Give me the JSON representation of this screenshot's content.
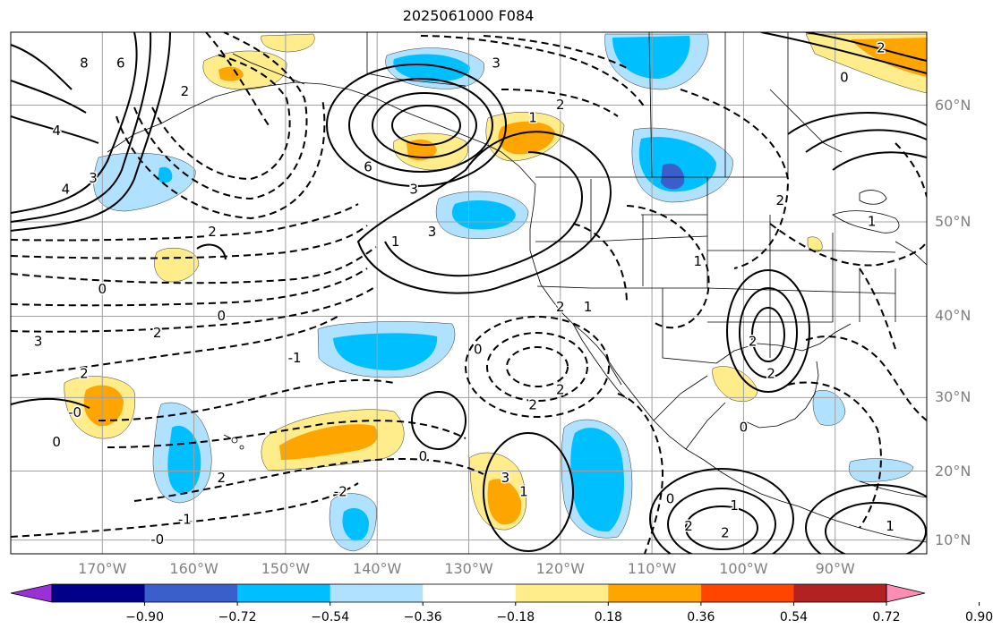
{
  "title": "2025061000 F084",
  "lat_labels": [
    {
      "text": "60°N",
      "lat": 60
    },
    {
      "text": "50°N",
      "lat": 50
    },
    {
      "text": "40°N",
      "lat": 40
    },
    {
      "text": "30°N",
      "lat": 30
    },
    {
      "text": "20°N",
      "lat": 20
    },
    {
      "text": "10°N",
      "lat": 10
    }
  ],
  "lon_labels": [
    {
      "text": "170°W",
      "lon": -170
    },
    {
      "text": "160°W",
      "lon": -160
    },
    {
      "text": "150°W",
      "lon": -150
    },
    {
      "text": "140°W",
      "lon": -140
    },
    {
      "text": "130°W",
      "lon": -130
    },
    {
      "text": "120°W",
      "lon": -120
    },
    {
      "text": "110°W",
      "lon": -110
    },
    {
      "text": "100°W",
      "lon": -100
    },
    {
      "text": "90°W",
      "lon": -90
    }
  ],
  "colorbar": {
    "colors": [
      "#9b30d9",
      "#00008b",
      "#3a5fcd",
      "#00bfff",
      "#b0e2ff",
      "#ffffff",
      "#ffec8b",
      "#ffa500",
      "#ff4500",
      "#b22222",
      "#ff8cb4"
    ],
    "ticks": [
      "−0.90",
      "−0.72",
      "−0.54",
      "−0.36",
      "−0.18",
      "0.18",
      "0.36",
      "0.54",
      "0.72",
      "0.90"
    ]
  },
  "contour_labels": [
    {
      "text": "8",
      "lon": -172,
      "lat": 63
    },
    {
      "text": "6",
      "lon": -168,
      "lat": 63
    },
    {
      "text": "4",
      "lon": -175,
      "lat": 58
    },
    {
      "text": "4",
      "lon": -174,
      "lat": 53
    },
    {
      "text": "3",
      "lon": -171,
      "lat": 54
    },
    {
      "text": "2",
      "lon": -161,
      "lat": 61
    },
    {
      "text": "2",
      "lon": -158,
      "lat": 49
    },
    {
      "text": "0",
      "lon": -170,
      "lat": 43
    },
    {
      "text": "0",
      "lon": -157,
      "lat": 40
    },
    {
      "text": "3",
      "lon": -177,
      "lat": 37
    },
    {
      "text": "2",
      "lon": -164,
      "lat": 38
    },
    {
      "text": "2",
      "lon": -172,
      "lat": 33
    },
    {
      "text": "-1",
      "lon": -149,
      "lat": 35
    },
    {
      "text": "-0",
      "lon": -173,
      "lat": 28
    },
    {
      "text": "0",
      "lon": -175,
      "lat": 24
    },
    {
      "text": "2",
      "lon": -157,
      "lat": 19
    },
    {
      "text": "-2",
      "lon": -144,
      "lat": 17
    },
    {
      "text": "-1",
      "lon": -161,
      "lat": 13
    },
    {
      "text": "-0",
      "lon": -164,
      "lat": 10
    },
    {
      "text": "6",
      "lon": -141,
      "lat": 55
    },
    {
      "text": "3",
      "lon": -136,
      "lat": 53
    },
    {
      "text": "3",
      "lon": -134,
      "lat": 49
    },
    {
      "text": "1",
      "lon": -138,
      "lat": 48
    },
    {
      "text": "3",
      "lon": -127,
      "lat": 63
    },
    {
      "text": "2",
      "lon": -120,
      "lat": 60
    },
    {
      "text": "1",
      "lon": -123,
      "lat": 59
    },
    {
      "text": "2",
      "lon": -120,
      "lat": 41
    },
    {
      "text": "1",
      "lon": -117,
      "lat": 41
    },
    {
      "text": "0",
      "lon": -129,
      "lat": 36
    },
    {
      "text": "2",
      "lon": -123,
      "lat": 29
    },
    {
      "text": "2",
      "lon": -120,
      "lat": 31
    },
    {
      "text": "0",
      "lon": -135,
      "lat": 22
    },
    {
      "text": "3",
      "lon": -126,
      "lat": 19
    },
    {
      "text": "1",
      "lon": -124,
      "lat": 17
    },
    {
      "text": "0",
      "lon": -108,
      "lat": 16
    },
    {
      "text": "1",
      "lon": -101,
      "lat": 15
    },
    {
      "text": "2",
      "lon": -106,
      "lat": 12
    },
    {
      "text": "2",
      "lon": -102,
      "lat": 11
    },
    {
      "text": "0",
      "lon": -100,
      "lat": 26
    },
    {
      "text": "2",
      "lon": -97,
      "lat": 33
    },
    {
      "text": "2",
      "lon": -99,
      "lat": 37
    },
    {
      "text": "1",
      "lon": -105,
      "lat": 46
    },
    {
      "text": "2",
      "lon": -96,
      "lat": 52
    },
    {
      "text": "1",
      "lon": -86,
      "lat": 50
    },
    {
      "text": "0",
      "lon": -89,
      "lat": 62
    },
    {
      "text": "2",
      "lon": -85,
      "lat": 64
    },
    {
      "text": "1",
      "lon": -84,
      "lat": 12
    }
  ]
}
